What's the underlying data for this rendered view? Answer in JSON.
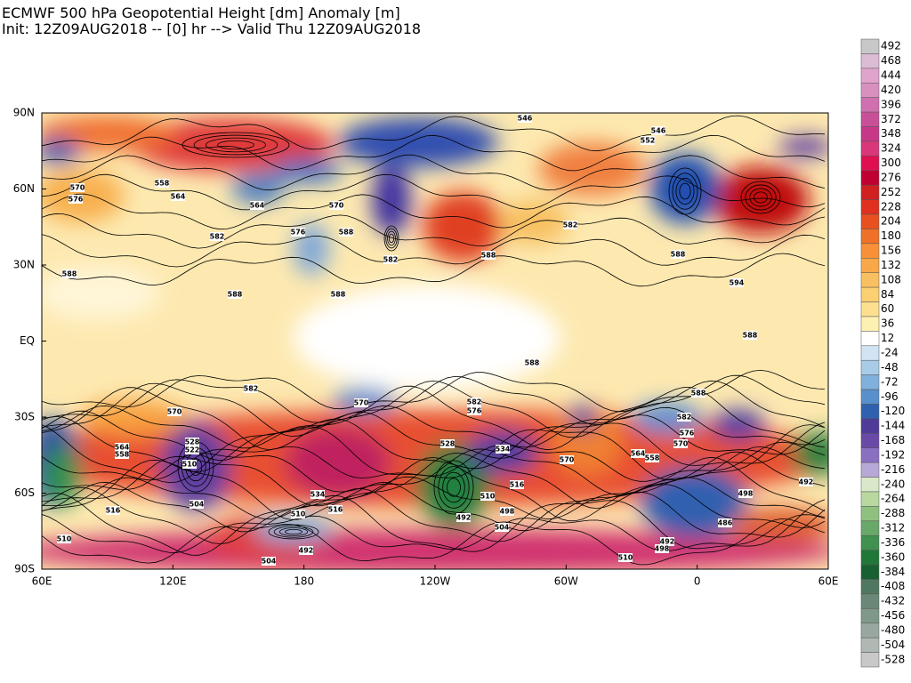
{
  "header": {
    "title": "ECMWF 500 hPa Geopotential Height [dm] Anomaly [m]",
    "subtitle": "Init: 12Z09AUG2018 -- [0] hr --> Valid Thu 12Z09AUG2018"
  },
  "map": {
    "lat_labels": [
      "90N",
      "60N",
      "30N",
      "EQ",
      "30S",
      "60S",
      "90S"
    ],
    "lon_labels": [
      "60E",
      "120E",
      "180",
      "120W",
      "60W",
      "0",
      "60E"
    ],
    "contour_labels": [
      "546",
      "546",
      "552",
      "570",
      "576",
      "558",
      "564",
      "564",
      "570",
      "576",
      "588",
      "582",
      "582",
      "588",
      "588",
      "588",
      "588",
      "582",
      "588",
      "594",
      "588",
      "588",
      "588",
      "582",
      "570",
      "570",
      "582",
      "576",
      "564",
      "558",
      "528",
      "522",
      "510",
      "504",
      "516",
      "510",
      "534",
      "516",
      "510",
      "492",
      "504",
      "492",
      "498",
      "504",
      "510",
      "516",
      "570",
      "582",
      "576",
      "570",
      "564",
      "558",
      "498",
      "486",
      "492",
      "492",
      "498",
      "510",
      "534",
      "528"
    ]
  },
  "colorbar": {
    "labels": [
      "492",
      "468",
      "444",
      "420",
      "396",
      "372",
      "348",
      "324",
      "300",
      "276",
      "252",
      "228",
      "204",
      "180",
      "156",
      "132",
      "108",
      "84",
      "60",
      "36",
      "12",
      "-24",
      "-48",
      "-72",
      "-96",
      "-120",
      "-144",
      "-168",
      "-192",
      "-216",
      "-240",
      "-264",
      "-288",
      "-312",
      "-336",
      "-360",
      "-384",
      "-408",
      "-432",
      "-456",
      "-480",
      "-504",
      "-528"
    ],
    "colors": [
      "#c8c8c8",
      "#dcbcd4",
      "#e0a4cc",
      "#d890c0",
      "#d070b0",
      "#c85098",
      "#c83888",
      "#d8387a",
      "#e01050",
      "#c00030",
      "#d02020",
      "#e03020",
      "#e85020",
      "#f07028",
      "#f89038",
      "#f8a848",
      "#f8c060",
      "#fad070",
      "#fce090",
      "#fef0b0",
      "#ffffff",
      "#d0e4f4",
      "#a8cce8",
      "#80b0dc",
      "#5890cc",
      "#3060b0",
      "#503c98",
      "#6a4aa8",
      "#8a70c0",
      "#b8a8d8",
      "#d8e8c8",
      "#b8d8a0",
      "#90c080",
      "#68a868",
      "#409050",
      "#207838",
      "#186030",
      "#507860",
      "#6a8878",
      "#809888",
      "#98a8a0",
      "#b0b8b4",
      "#c8c8c8"
    ]
  }
}
